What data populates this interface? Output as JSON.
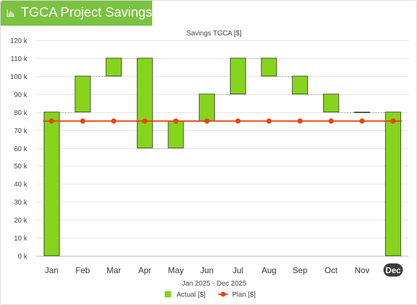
{
  "header": {
    "title": "TGCA Project Savings",
    "icon": "bar-chart-icon"
  },
  "colors": {
    "header_bg": "#7bc242",
    "bar_fill": "#86d41c",
    "bar_stroke": "#2c2c2c",
    "plan_line": "#e2470e",
    "grid": "#e4e4e4",
    "selected_badge": "#3c3c3c"
  },
  "chart_data": {
    "type": "waterfall",
    "title": "Savings TGCA [$]",
    "xlabel": "Jan 2025 - Dec 2025",
    "ylabel": "",
    "ylim": [
      0,
      120000
    ],
    "ytick_step": 10000,
    "yticks": [
      "0 k",
      "10 k",
      "20 k",
      "30 k",
      "40 k",
      "50 k",
      "60 k",
      "70 k",
      "80 k",
      "90 k",
      "100 k",
      "110 k",
      "120 k"
    ],
    "categories": [
      "Jan",
      "Feb",
      "Mar",
      "Apr",
      "May",
      "Jun",
      "Jul",
      "Aug",
      "Sep",
      "Oct",
      "Nov",
      "Dec"
    ],
    "selected_category": "Dec",
    "series": [
      {
        "name": "Actual [$]",
        "kind": "waterfall",
        "bars": [
          {
            "low": 0,
            "high": 80000
          },
          {
            "low": 80000,
            "high": 100000
          },
          {
            "low": 100000,
            "high": 110000
          },
          {
            "low": 60000,
            "high": 110000
          },
          {
            "low": 60000,
            "high": 75000
          },
          {
            "low": 75000,
            "high": 90000
          },
          {
            "low": 90000,
            "high": 110000
          },
          {
            "low": 100000,
            "high": 110000
          },
          {
            "low": 90000,
            "high": 100000
          },
          {
            "low": 80000,
            "high": 90000
          },
          {
            "low": 80000,
            "high": 80000
          },
          {
            "low": 0,
            "high": 80000
          }
        ]
      },
      {
        "name": "Plan [$]",
        "kind": "line",
        "values": [
          75000,
          75000,
          75000,
          75000,
          75000,
          75000,
          75000,
          75000,
          75000,
          75000,
          75000,
          75000
        ]
      }
    ],
    "legend": [
      {
        "label": "Actual [$]",
        "marker": "square"
      },
      {
        "label": "Plan [$]",
        "marker": "line-dot"
      }
    ],
    "legend_position": "bottom-center",
    "grid": true
  }
}
